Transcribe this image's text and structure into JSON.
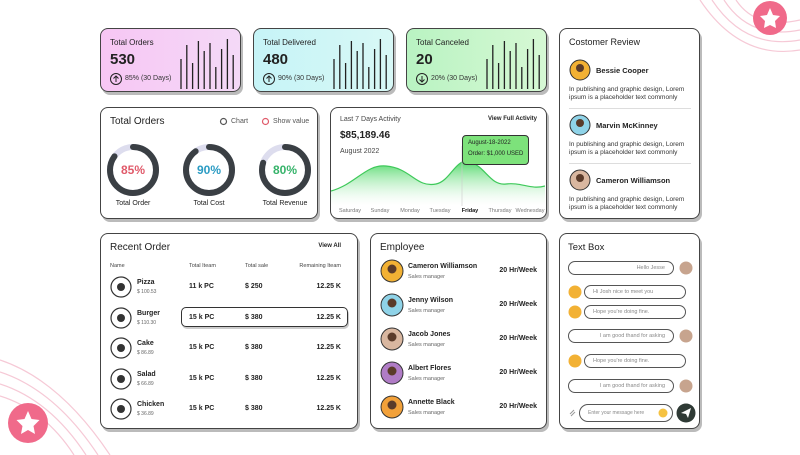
{
  "stat_cards": [
    {
      "title": "Total Orders",
      "value": "530",
      "change": "85% (30 Days)"
    },
    {
      "title": "Total Delivered",
      "value": "480",
      "change": "90% (30 Days)"
    },
    {
      "title": "Total Canceled",
      "value": "20",
      "change": "20% (30 Days)"
    }
  ],
  "orders_panel": {
    "title": "Total Orders",
    "legend": [
      "Chart",
      "Show value"
    ],
    "gauges": [
      {
        "value": "85%",
        "label": "Total Order"
      },
      {
        "value": "90%",
        "label": "Total Cost"
      },
      {
        "value": "80%",
        "label": "Total Revenue"
      }
    ]
  },
  "activity": {
    "title": "Last 7 Days Activity",
    "link": "View Full Activity",
    "amount": "$85,189.46",
    "period": "August 2022",
    "tooltip_date": "August-18-2022",
    "tooltip_order": "Order: $1,000 USED",
    "days": [
      "Saturday",
      "Sunday",
      "Monday",
      "Tuesday",
      "Friday",
      "Thursday",
      "Wednesday"
    ]
  },
  "review": {
    "title": "Costomer Review",
    "items": [
      {
        "name": "Bessie Cooper",
        "text": "In publishing and graphic design, Lorem ipsum is a placeholder text commonly"
      },
      {
        "name": "Marvin McKinney",
        "text": "In publishing and graphic design, Lorem ipsum is a placeholder text commonly"
      },
      {
        "name": "Cameron Williamson",
        "text": "In publishing and graphic design, Lorem ipsum is a placeholder text commonly"
      }
    ]
  },
  "recent_order": {
    "title": "Recent Order",
    "link": "View All",
    "columns": [
      "Name",
      "Total Iteam",
      "Total sale",
      "Remaining Iteam"
    ],
    "rows": [
      {
        "name": "Pizza",
        "price": "$ 100.53",
        "total": "11 k PC",
        "sale": "$ 250",
        "remaining": "12.25 K"
      },
      {
        "name": "Burger",
        "price": "$ 110.30",
        "total": "15 k PC",
        "sale": "$ 380",
        "remaining": "12.25 K"
      },
      {
        "name": "Cake",
        "price": "$ 86.89",
        "total": "15 k PC",
        "sale": "$ 380",
        "remaining": "12.25 K"
      },
      {
        "name": "Salad",
        "price": "$ 66.89",
        "total": "15 k PC",
        "sale": "$ 380",
        "remaining": "12.25 K"
      },
      {
        "name": "Chicken",
        "price": "$ 36.89",
        "total": "15 k PC",
        "sale": "$ 380",
        "remaining": "12.25 K"
      }
    ]
  },
  "employee": {
    "title": "Employee",
    "rows": [
      {
        "name": "Cameron Williamson",
        "role": "Sales manager",
        "hours": "20 Hr/Week"
      },
      {
        "name": "Jenny Wilson",
        "role": "Sales manager",
        "hours": "20 Hr/Week"
      },
      {
        "name": "Jacob Jones",
        "role": "Sales manager",
        "hours": "20 Hr/Week"
      },
      {
        "name": "Albert Flores",
        "role": "Sales manager",
        "hours": "20 Hr/Week"
      },
      {
        "name": "Annette Black",
        "role": "Sales manager",
        "hours": "20 Hr/Week"
      }
    ]
  },
  "text_box": {
    "title": "Text Box",
    "messages": [
      {
        "side": "right",
        "text": "Hello Jesse"
      },
      {
        "side": "left",
        "text": "Hi Josh nice to meet you"
      },
      {
        "side": "left",
        "text": "Hope you're doing fine."
      },
      {
        "side": "right",
        "text": "I am good thand for asking"
      },
      {
        "side": "left",
        "text": "Hope you're doing fine."
      },
      {
        "side": "right",
        "text": "I am good thand for asking"
      }
    ],
    "input_placeholder": "Enter your message here"
  }
}
